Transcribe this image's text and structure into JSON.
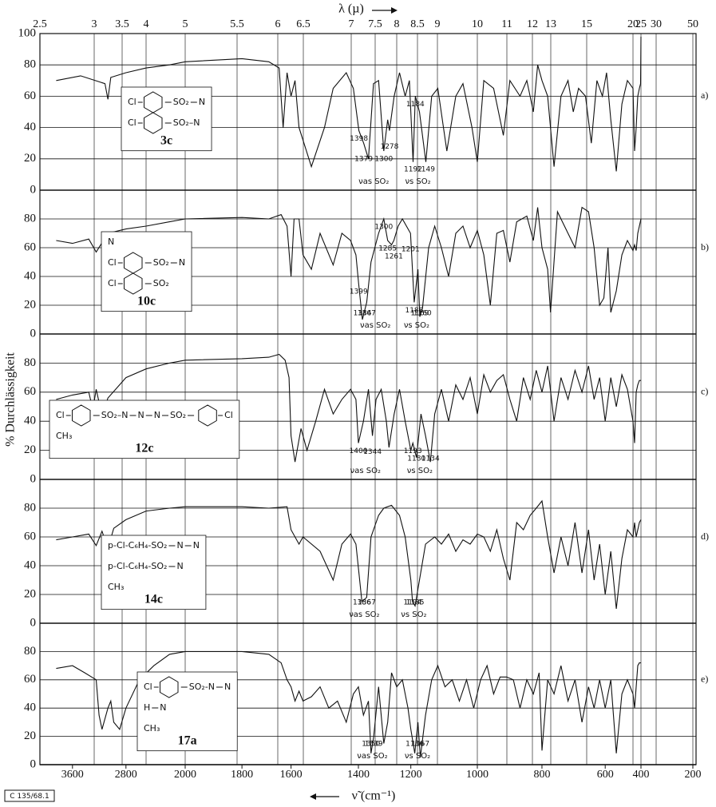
{
  "figure": {
    "top_axis": {
      "label": "λ (µ)",
      "ticks": [
        2.5,
        3,
        3.5,
        4,
        5,
        5.5,
        6,
        6.5,
        7,
        7.5,
        8,
        8.5,
        9,
        10,
        11,
        12,
        13,
        15,
        20,
        25,
        30,
        50
      ]
    },
    "bottom_axis": {
      "label": "ν̃ (cm⁻¹)",
      "ticks": [
        3600,
        2800,
        2000,
        1800,
        1600,
        1400,
        1200,
        1000,
        800,
        600,
        400,
        200
      ]
    },
    "ylabel": "% Durchlässigkeit",
    "stamp": "C 135/68.1"
  },
  "chart_data": [
    {
      "type": "line",
      "panel": "a)",
      "compound": "3c",
      "structure": [
        [
          "Cl",
          "SO₂",
          "N"
        ],
        [
          "Cl",
          "SO₂–N"
        ]
      ],
      "color": "#111111",
      "ylim": [
        0,
        100
      ],
      "yticks": [
        0,
        20,
        40,
        60,
        80,
        100
      ],
      "grid": true,
      "x": [
        3800,
        3500,
        3150,
        3100,
        3050,
        2800,
        2500,
        2200,
        2000,
        1800,
        1700,
        1660,
        1640,
        1620,
        1600,
        1580,
        1560,
        1520,
        1490,
        1470,
        1440,
        1420,
        1398,
        1379,
        1360,
        1340,
        1320,
        1300,
        1285,
        1278,
        1260,
        1240,
        1220,
        1205,
        1192,
        1184,
        1170,
        1149,
        1130,
        1110,
        1085,
        1060,
        1040,
        1015,
        1000,
        980,
        950,
        920,
        900,
        870,
        850,
        830,
        815,
        800,
        780,
        760,
        740,
        720,
        705,
        690,
        670,
        650,
        630,
        610,
        595,
        580,
        560,
        540,
        520,
        500,
        480,
        460,
        440,
        420,
        405,
        400
      ],
      "values": [
        70,
        73,
        68,
        58,
        72,
        75,
        78,
        80,
        82,
        84,
        82,
        78,
        40,
        75,
        60,
        70,
        40,
        15,
        40,
        65,
        75,
        65,
        38,
        30,
        20,
        68,
        70,
        25,
        45,
        38,
        60,
        75,
        60,
        70,
        18,
        60,
        50,
        18,
        60,
        65,
        25,
        60,
        68,
        40,
        18,
        70,
        65,
        35,
        70,
        60,
        70,
        50,
        80,
        70,
        60,
        15,
        60,
        70,
        50,
        65,
        60,
        30,
        70,
        60,
        75,
        45,
        12,
        55,
        70,
        65,
        25,
        40,
        60,
        65,
        68,
        98
      ],
      "peak_labels": [
        1398,
        1379,
        1300,
        1278,
        1184,
        1192,
        1149
      ],
      "annotations": [
        "νas SO₂",
        "νs SO₂"
      ]
    },
    {
      "type": "line",
      "panel": "b)",
      "compound": "10c",
      "structure": [
        [
          "N"
        ],
        [
          "Cl",
          "SO₂",
          "N"
        ],
        [
          "Cl",
          "SO₂"
        ]
      ],
      "color": "#111111",
      "ylim": [
        0,
        100
      ],
      "yticks": [
        0,
        20,
        40,
        60,
        80
      ],
      "grid": true,
      "x": [
        3800,
        3600,
        3400,
        3300,
        3100,
        2800,
        2500,
        2200,
        2000,
        1800,
        1700,
        1650,
        1620,
        1600,
        1585,
        1560,
        1540,
        1520,
        1500,
        1470,
        1450,
        1430,
        1410,
        1399,
        1384,
        1367,
        1350,
        1320,
        1300,
        1285,
        1270,
        1261,
        1245,
        1230,
        1201,
        1188,
        1175,
        1169,
        1160,
        1140,
        1120,
        1100,
        1080,
        1060,
        1040,
        1020,
        1000,
        980,
        960,
        940,
        920,
        900,
        880,
        850,
        830,
        815,
        800,
        780,
        770,
        750,
        720,
        700,
        680,
        660,
        640,
        620,
        605,
        590,
        580,
        560,
        540,
        520,
        500,
        480,
        460,
        440,
        420,
        400
      ],
      "values": [
        65,
        63,
        66,
        57,
        70,
        73,
        75,
        78,
        80,
        81,
        80,
        83,
        75,
        40,
        80,
        80,
        55,
        45,
        70,
        48,
        70,
        65,
        55,
        35,
        10,
        22,
        50,
        70,
        80,
        65,
        62,
        65,
        75,
        80,
        70,
        22,
        45,
        12,
        18,
        60,
        75,
        60,
        40,
        70,
        75,
        60,
        72,
        55,
        20,
        70,
        72,
        50,
        78,
        82,
        65,
        88,
        60,
        45,
        15,
        85,
        70,
        60,
        88,
        85,
        60,
        20,
        25,
        60,
        15,
        30,
        55,
        65,
        58,
        62,
        58,
        70,
        75,
        80
      ],
      "peak_labels": [
        1300,
        1261,
        1285,
        1201,
        1399,
        1367,
        1188,
        1160,
        1384,
        1169
      ],
      "annotations": [
        "νas SO₂",
        "νs SO₂"
      ]
    },
    {
      "type": "line",
      "panel": "c)",
      "compound": "12c",
      "structure": [
        [
          "Cl",
          "SO₂–N",
          "N",
          "N",
          "SO₂",
          "Cl"
        ],
        [
          "CH₃"
        ]
      ],
      "color": "#111111",
      "ylim": [
        0,
        100
      ],
      "yticks": [
        0,
        20,
        40,
        60,
        80
      ],
      "grid": true,
      "x": [
        3800,
        3600,
        3400,
        3350,
        3300,
        3200,
        3100,
        2800,
        2500,
        2200,
        2000,
        1800,
        1700,
        1660,
        1630,
        1610,
        1600,
        1580,
        1550,
        1530,
        1510,
        1490,
        1470,
        1450,
        1430,
        1410,
        1400,
        1380,
        1360,
        1344,
        1330,
        1310,
        1290,
        1280,
        1260,
        1240,
        1220,
        1200,
        1193,
        1180,
        1165,
        1150,
        1134,
        1120,
        1100,
        1080,
        1060,
        1040,
        1020,
        1000,
        980,
        960,
        940,
        920,
        900,
        880,
        860,
        840,
        820,
        800,
        780,
        760,
        740,
        720,
        700,
        680,
        660,
        640,
        620,
        600,
        580,
        560,
        540,
        520,
        500,
        480,
        460,
        440,
        420,
        400
      ],
      "values": [
        55,
        58,
        60,
        48,
        62,
        44,
        56,
        70,
        76,
        80,
        82,
        83,
        84,
        86,
        82,
        70,
        30,
        12,
        35,
        20,
        40,
        62,
        45,
        55,
        62,
        55,
        25,
        40,
        62,
        30,
        55,
        62,
        40,
        22,
        45,
        62,
        40,
        20,
        25,
        15,
        45,
        30,
        12,
        45,
        62,
        40,
        65,
        55,
        70,
        45,
        72,
        60,
        68,
        72,
        55,
        40,
        70,
        55,
        75,
        60,
        78,
        40,
        70,
        55,
        75,
        60,
        78,
        55,
        70,
        40,
        70,
        50,
        72,
        62,
        40,
        25,
        60,
        65,
        68,
        68
      ],
      "peak_labels": [
        1400,
        1344,
        1193,
        1180,
        1134
      ],
      "annotations": [
        "νas SO₂",
        "νs SO₂"
      ]
    },
    {
      "type": "line",
      "panel": "d)",
      "compound": "14c",
      "structure": [
        [
          "p-Cl-C₆H₄-SO₂",
          "N",
          "N"
        ],
        [
          "p-Cl-C₆H₄-SO₂",
          "N"
        ],
        [
          "CH₃"
        ]
      ],
      "color": "#111111",
      "ylim": [
        0,
        100
      ],
      "yticks": [
        0,
        20,
        40,
        60,
        80
      ],
      "grid": true,
      "x": [
        3800,
        3600,
        3400,
        3300,
        3200,
        3100,
        3000,
        2800,
        2500,
        2200,
        2000,
        1800,
        1700,
        1620,
        1600,
        1580,
        1560,
        1540,
        1500,
        1470,
        1450,
        1430,
        1410,
        1386,
        1367,
        1350,
        1320,
        1300,
        1270,
        1240,
        1220,
        1200,
        1194,
        1185,
        1170,
        1150,
        1120,
        1100,
        1080,
        1060,
        1040,
        1020,
        1000,
        980,
        960,
        940,
        920,
        900,
        880,
        860,
        840,
        820,
        800,
        780,
        760,
        740,
        720,
        700,
        680,
        660,
        640,
        620,
        600,
        580,
        560,
        540,
        520,
        500,
        480,
        460,
        440,
        420,
        400
      ],
      "values": [
        58,
        60,
        62,
        54,
        64,
        52,
        66,
        72,
        78,
        80,
        81,
        81,
        80,
        81,
        65,
        60,
        55,
        60,
        50,
        30,
        55,
        62,
        55,
        15,
        18,
        60,
        75,
        80,
        82,
        75,
        60,
        30,
        15,
        12,
        30,
        55,
        60,
        55,
        62,
        50,
        58,
        55,
        62,
        60,
        50,
        65,
        45,
        30,
        70,
        65,
        75,
        80,
        85,
        60,
        35,
        60,
        40,
        70,
        35,
        65,
        30,
        55,
        20,
        50,
        10,
        45,
        65,
        60,
        70,
        60,
        65,
        70,
        72
      ],
      "peak_labels": [
        1386,
        1367,
        1194,
        1185
      ],
      "annotations": [
        "νas SO₂",
        "νs SO₂"
      ]
    },
    {
      "type": "line",
      "panel": "e)",
      "compound": "17a",
      "structure": [
        [
          "Cl",
          "SO₂-N",
          "N"
        ],
        [
          "H",
          "N"
        ],
        [
          "CH₃"
        ]
      ],
      "color": "#111111",
      "ylim": [
        0,
        100
      ],
      "yticks": [
        0,
        20,
        40,
        60,
        80
      ],
      "grid": true,
      "x": [
        3800,
        3600,
        3450,
        3300,
        3250,
        3200,
        3100,
        3050,
        3000,
        2900,
        2800,
        2600,
        2400,
        2200,
        2000,
        1800,
        1700,
        1650,
        1620,
        1600,
        1580,
        1560,
        1540,
        1520,
        1500,
        1480,
        1460,
        1440,
        1420,
        1400,
        1380,
        1360,
        1350,
        1339,
        1320,
        1300,
        1285,
        1270,
        1250,
        1230,
        1210,
        1200,
        1186,
        1175,
        1167,
        1150,
        1130,
        1110,
        1090,
        1070,
        1050,
        1030,
        1010,
        990,
        970,
        950,
        930,
        910,
        890,
        870,
        850,
        830,
        810,
        800,
        780,
        760,
        740,
        720,
        700,
        680,
        660,
        640,
        620,
        600,
        580,
        560,
        540,
        520,
        500,
        480,
        460,
        440,
        420,
        400
      ],
      "values": [
        68,
        70,
        65,
        60,
        35,
        25,
        40,
        45,
        30,
        25,
        40,
        60,
        70,
        78,
        80,
        80,
        78,
        72,
        60,
        55,
        45,
        52,
        45,
        48,
        55,
        40,
        45,
        30,
        50,
        55,
        35,
        45,
        8,
        20,
        55,
        15,
        30,
        65,
        55,
        60,
        40,
        25,
        8,
        30,
        5,
        35,
        60,
        70,
        55,
        60,
        45,
        60,
        40,
        60,
        70,
        50,
        62,
        62,
        60,
        40,
        60,
        50,
        65,
        10,
        60,
        50,
        70,
        45,
        60,
        30,
        55,
        40,
        60,
        40,
        60,
        8,
        50,
        60,
        50,
        40,
        55,
        70,
        72,
        72
      ],
      "peak_labels": [
        1339,
        1350,
        1186,
        1167
      ],
      "annotations": [
        "νas SO₂",
        "νs SO₂"
      ]
    }
  ]
}
